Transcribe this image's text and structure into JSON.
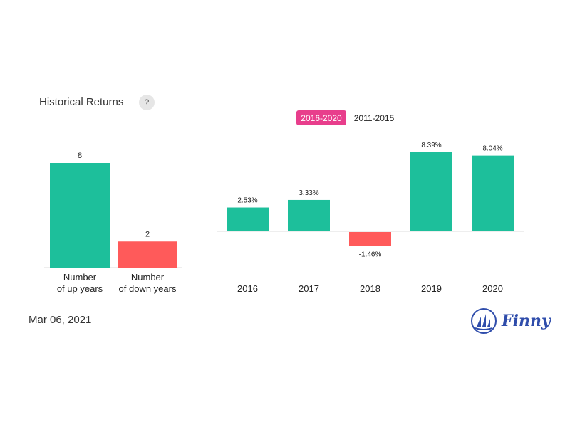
{
  "header": {
    "title": "Historical Returns",
    "help_icon_label": "?"
  },
  "tabs": [
    {
      "label": "2016-2020",
      "active": true
    },
    {
      "label": "2011-2015",
      "active": false
    }
  ],
  "chart_data": [
    {
      "type": "bar",
      "categories": [
        "Number\nof up years",
        "Number\nof down years"
      ],
      "values": [
        8,
        2
      ],
      "value_labels": [
        "8",
        "2"
      ],
      "colors": [
        "#1dbf9b",
        "#ff5a5a"
      ]
    },
    {
      "type": "bar",
      "categories": [
        "2016",
        "2017",
        "2018",
        "2019",
        "2020"
      ],
      "values": [
        2.53,
        3.33,
        -1.46,
        8.39,
        8.04
      ],
      "value_labels": [
        "2.53%",
        "3.33%",
        "-1.46%",
        "8.39%",
        "8.04%"
      ],
      "positive_color": "#1dbf9b",
      "negative_color": "#ff5a5a"
    }
  ],
  "footer": {
    "date": "Mar 06, 2021",
    "brand": "Finny",
    "brand_color": "#2f4dab",
    "logo_icon": "sailboat-logo-icon"
  }
}
